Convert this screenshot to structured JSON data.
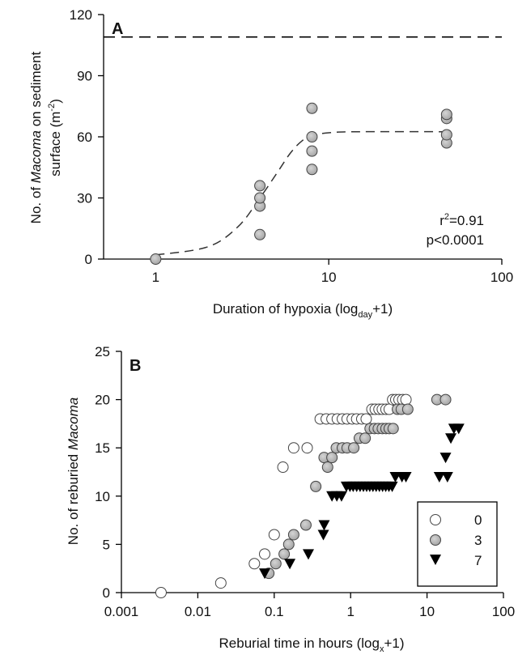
{
  "chart_data": [
    {
      "type": "scatter",
      "panel_label": "A",
      "xlabel_pre": "Duration of hypoxia (log",
      "xlabel_sub": "day",
      "xlabel_post": "+1)",
      "ylabel_line1_pre": "No. of ",
      "ylabel_line1_italic": "Macoma",
      "ylabel_line1_post": " on sediment",
      "ylabel_line2_pre": "surface (m",
      "ylabel_line2_sup": "-2",
      "ylabel_line2_post": ")",
      "x_scale": "log",
      "xlim": [
        0.5,
        100
      ],
      "ylim": [
        0,
        120
      ],
      "x_ticks": [
        1,
        10,
        100
      ],
      "x_tick_labels": [
        "1",
        "10",
        "100"
      ],
      "y_ticks": [
        0,
        30,
        60,
        90,
        120
      ],
      "y_tick_labels": [
        "0",
        "30",
        "60",
        "90",
        "120"
      ],
      "reference_line_y": 109,
      "points": [
        {
          "x": 1,
          "y": 0
        },
        {
          "x": 4,
          "y": 12
        },
        {
          "x": 4,
          "y": 26
        },
        {
          "x": 4,
          "y": 30
        },
        {
          "x": 4,
          "y": 36
        },
        {
          "x": 8,
          "y": 44
        },
        {
          "x": 8,
          "y": 53
        },
        {
          "x": 8,
          "y": 60
        },
        {
          "x": 8,
          "y": 74
        },
        {
          "x": 48,
          "y": 57
        },
        {
          "x": 48,
          "y": 61
        },
        {
          "x": 48,
          "y": 69
        },
        {
          "x": 48,
          "y": 71
        }
      ],
      "fit_curve": [
        {
          "x": 1,
          "y": 2
        },
        {
          "x": 2,
          "y": 6
        },
        {
          "x": 3,
          "y": 16
        },
        {
          "x": 4,
          "y": 30
        },
        {
          "x": 5,
          "y": 42
        },
        {
          "x": 6,
          "y": 52
        },
        {
          "x": 7,
          "y": 58
        },
        {
          "x": 8,
          "y": 60.5
        },
        {
          "x": 10,
          "y": 62
        },
        {
          "x": 15,
          "y": 62.5
        },
        {
          "x": 50,
          "y": 62.5
        }
      ],
      "stat_r2_pre": "r",
      "stat_r2_sup": "2",
      "stat_r2_post": "=0.91",
      "stat_p": "p<0.0001"
    },
    {
      "type": "scatter",
      "panel_label": "B",
      "xlabel_pre": "Reburial time in hours (log",
      "xlabel_sub": "x",
      "xlabel_post": "+1)",
      "ylabel_pre": "No. of reburied ",
      "ylabel_italic": "Macoma",
      "x_scale": "log",
      "xlim": [
        0.001,
        100
      ],
      "ylim": [
        0,
        25
      ],
      "x_ticks": [
        0.001,
        0.01,
        0.1,
        1,
        10,
        100
      ],
      "x_tick_labels": [
        "0.001",
        "0.01",
        "0.1",
        "1",
        "10",
        "100"
      ],
      "y_ticks": [
        0,
        5,
        10,
        15,
        20,
        25
      ],
      "y_tick_labels": [
        "0",
        "5",
        "10",
        "15",
        "20",
        "25"
      ],
      "legend_position": "lower-right",
      "series": [
        {
          "name": "0",
          "marker": "open-circle",
          "points": [
            [
              0.0033,
              0
            ],
            [
              0.02,
              1
            ],
            [
              0.055,
              3
            ],
            [
              0.075,
              4
            ],
            [
              0.1,
              6
            ],
            [
              0.13,
              13
            ],
            [
              0.18,
              15
            ],
            [
              0.27,
              15
            ],
            [
              0.4,
              18
            ],
            [
              0.48,
              18
            ],
            [
              0.57,
              18
            ],
            [
              0.67,
              18
            ],
            [
              0.78,
              18
            ],
            [
              0.9,
              18
            ],
            [
              1.05,
              18
            ],
            [
              1.2,
              18
            ],
            [
              1.4,
              18
            ],
            [
              1.6,
              18
            ],
            [
              1.9,
              19
            ],
            [
              2.1,
              19
            ],
            [
              2.35,
              19
            ],
            [
              2.6,
              19
            ],
            [
              2.9,
              19
            ],
            [
              3.2,
              19
            ],
            [
              3.55,
              20
            ],
            [
              3.9,
              20
            ],
            [
              4.3,
              20
            ],
            [
              4.8,
              20
            ],
            [
              5.3,
              20
            ]
          ]
        },
        {
          "name": "3",
          "marker": "gray-circle",
          "points": [
            [
              0.085,
              2
            ],
            [
              0.105,
              3
            ],
            [
              0.135,
              4
            ],
            [
              0.155,
              5
            ],
            [
              0.18,
              6
            ],
            [
              0.26,
              7
            ],
            [
              0.35,
              11
            ],
            [
              0.45,
              14
            ],
            [
              0.5,
              13
            ],
            [
              0.57,
              14
            ],
            [
              0.65,
              15
            ],
            [
              0.78,
              15
            ],
            [
              0.9,
              15
            ],
            [
              1.1,
              15
            ],
            [
              1.3,
              16
            ],
            [
              1.55,
              16
            ],
            [
              1.8,
              17
            ],
            [
              2.05,
              17
            ],
            [
              2.3,
              17
            ],
            [
              2.6,
              17
            ],
            [
              2.9,
              17
            ],
            [
              3.2,
              17
            ],
            [
              3.6,
              17
            ],
            [
              4.1,
              19
            ],
            [
              4.6,
              19
            ],
            [
              5.6,
              19
            ],
            [
              13.5,
              20
            ],
            [
              17.5,
              20
            ]
          ]
        },
        {
          "name": "7",
          "marker": "filled-triangle",
          "points": [
            [
              0.075,
              2
            ],
            [
              0.16,
              3
            ],
            [
              0.28,
              4
            ],
            [
              0.44,
              6
            ],
            [
              0.45,
              7
            ],
            [
              0.57,
              10
            ],
            [
              0.66,
              10
            ],
            [
              0.76,
              10
            ],
            [
              0.88,
              11
            ],
            [
              0.98,
              11
            ],
            [
              1.08,
              11
            ],
            [
              1.2,
              11
            ],
            [
              1.33,
              11
            ],
            [
              1.47,
              11
            ],
            [
              1.62,
              11
            ],
            [
              1.78,
              11
            ],
            [
              1.96,
              11
            ],
            [
              2.16,
              11
            ],
            [
              2.38,
              11
            ],
            [
              2.62,
              11
            ],
            [
              2.88,
              11
            ],
            [
              3.17,
              11
            ],
            [
              3.5,
              11
            ],
            [
              3.85,
              12
            ],
            [
              4.7,
              12
            ],
            [
              5.3,
              12
            ],
            [
              14.5,
              12
            ],
            [
              17.5,
              14
            ],
            [
              18.5,
              12
            ],
            [
              20.5,
              16
            ],
            [
              22.5,
              17
            ],
            [
              26,
              17
            ]
          ]
        }
      ]
    }
  ]
}
